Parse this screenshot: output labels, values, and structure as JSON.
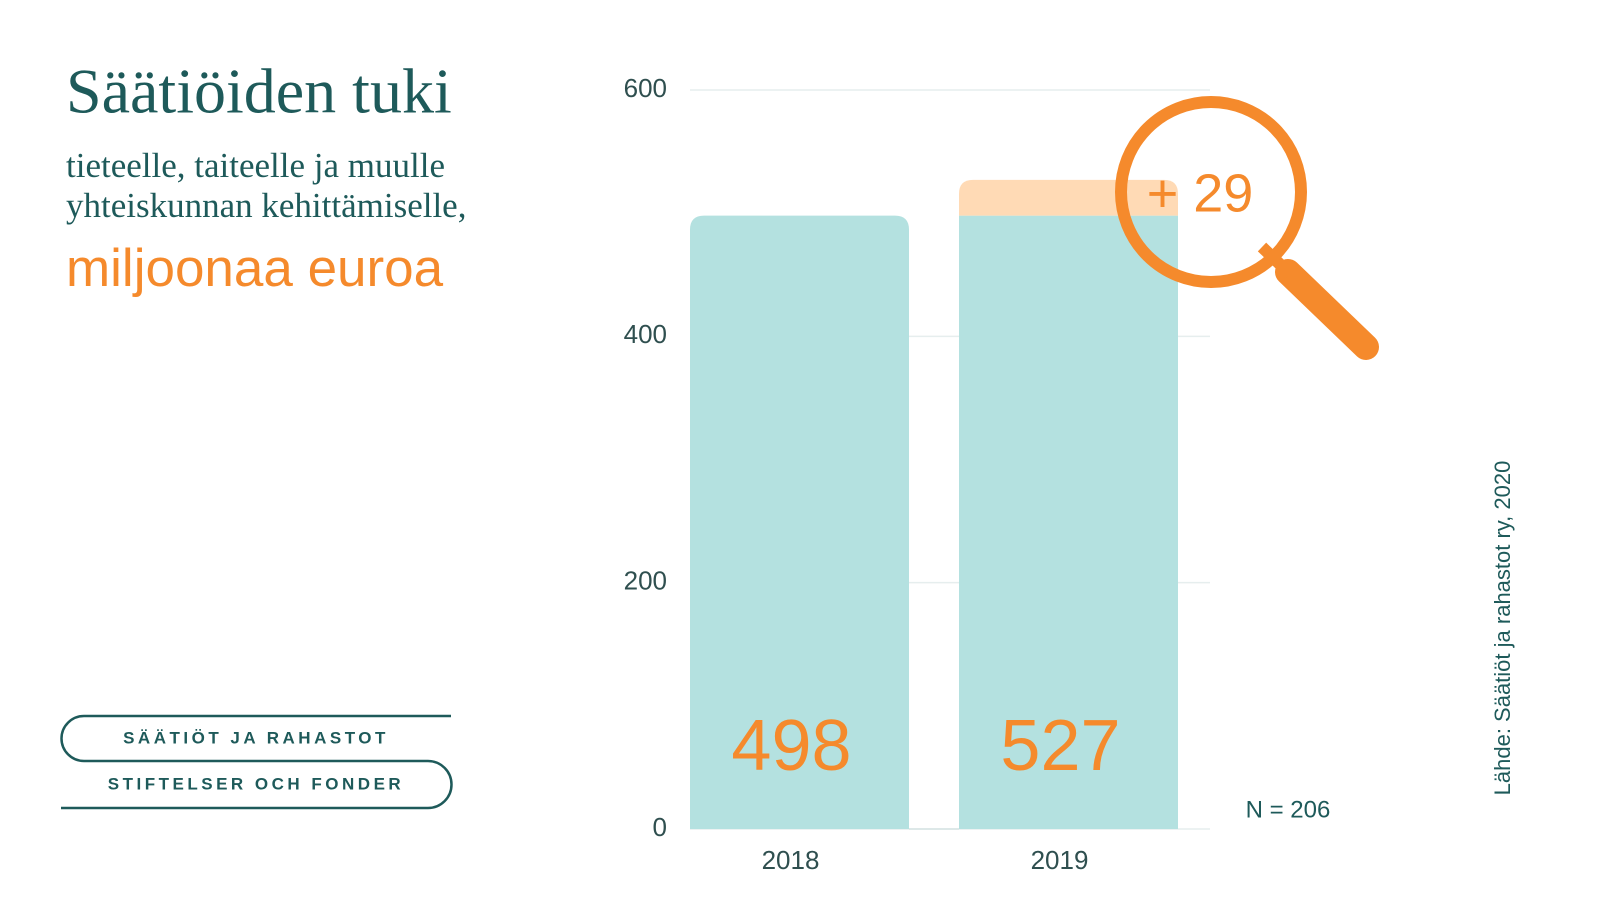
{
  "title": "Säätiöiden tuki",
  "subtitle_lines": [
    "tieteelle, taiteelle ja muulle",
    "yhteiskunnan kehittämiselle,"
  ],
  "unit": "miljoonaa euroa",
  "logo": [
    "SÄÄTIÖT JA RAHASTOT",
    "STIFTELSER OCH FONDER"
  ],
  "chart_data": {
    "type": "bar",
    "stacked": true,
    "categories": [
      "2018",
      "2019"
    ],
    "series": [
      {
        "color": "#b4e1e0",
        "values": [
          498,
          498
        ]
      },
      {
        "color": "#ffdab5",
        "values": [
          null,
          29
        ],
        "value_labels": [
          null,
          "+ 29"
        ]
      }
    ],
    "totals": [
      498,
      527
    ],
    "totals_color": "#f58a2c",
    "ylim": [
      0,
      600
    ],
    "yticks": [
      0,
      200,
      400,
      600
    ],
    "grid": true,
    "annotations": [
      "N = 206",
      "Lähde: Säätiöt ja rahastot ry, 2020"
    ]
  }
}
